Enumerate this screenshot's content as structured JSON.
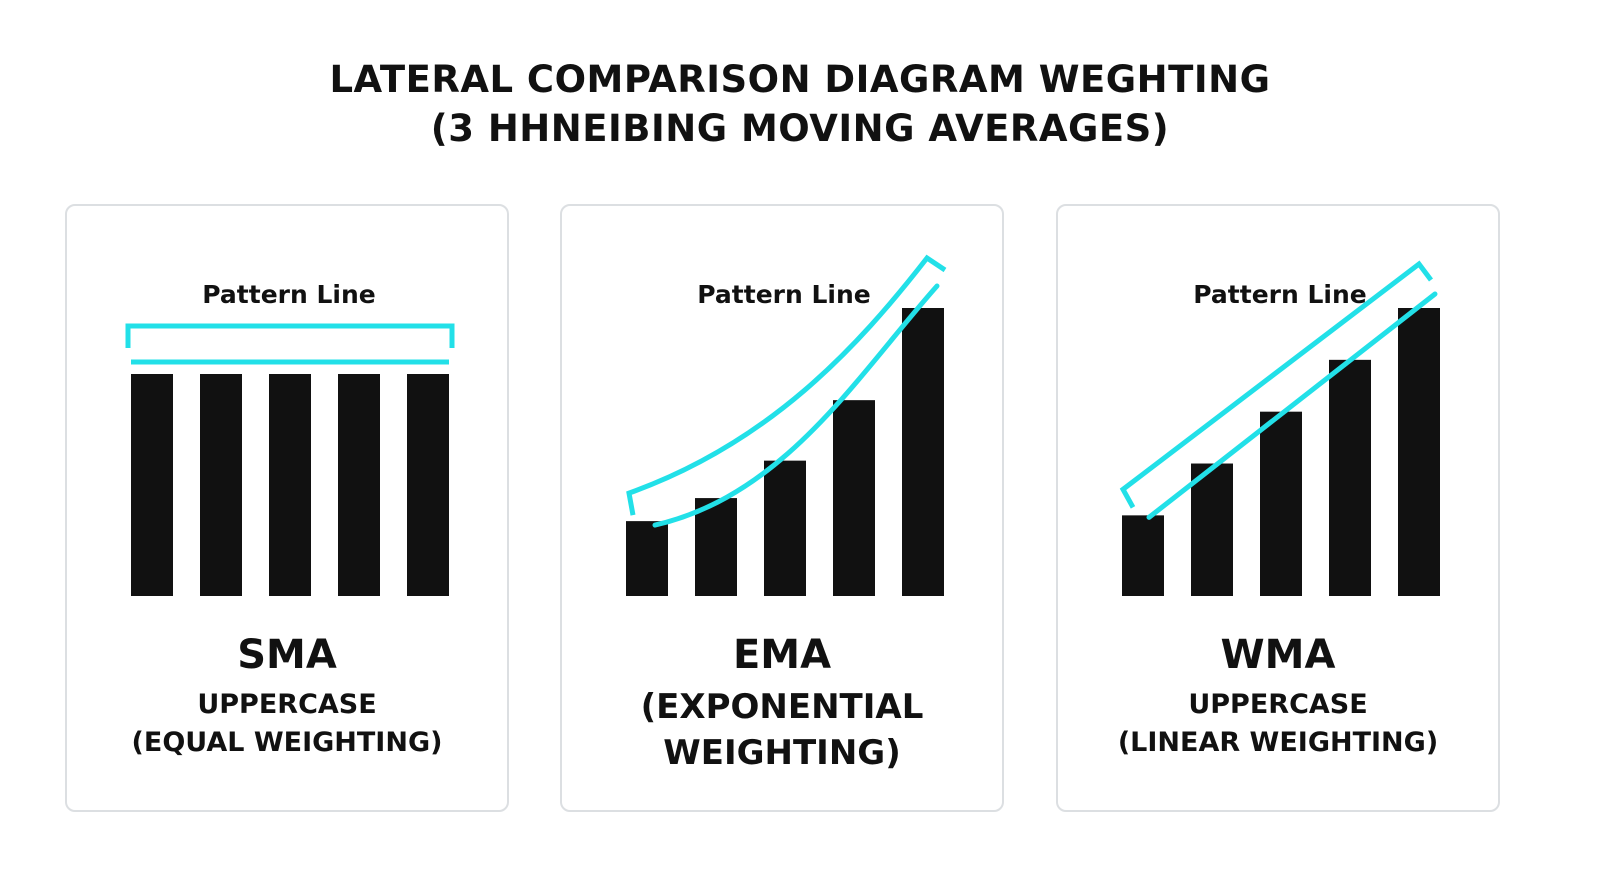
{
  "title": {
    "line1": "LATERAL COMPARISON DIAGRAM WEGHTING",
    "line2": "(3 HHNEIBING MOVING AVERAGES)"
  },
  "colors": {
    "bar": "#111111",
    "line": "#22e0e8",
    "border": "#dcdfe2",
    "background": "#ffffff"
  },
  "panels": [
    {
      "pattern_label": "Pattern Line",
      "abbr": "SMA",
      "desc_lines": [
        "UPPERCASE",
        "(EQUAL WEIGHTING)"
      ],
      "weights": [
        1,
        1,
        1,
        1,
        1
      ],
      "style": "equal"
    },
    {
      "pattern_label": "Pattern Line",
      "abbr": "EMA",
      "desc_lines": [
        "(EXPONENTIAL",
        "WEIGHTING)"
      ],
      "weights": [
        0.26,
        0.34,
        0.47,
        0.68,
        1
      ],
      "style": "exponential"
    },
    {
      "pattern_label": "Pattern Line",
      "abbr": "WMA",
      "desc_lines": [
        "UPPERCASE",
        "(LINEAR WEIGHTING)"
      ],
      "weights": [
        0.28,
        0.46,
        0.64,
        0.82,
        1
      ],
      "style": "linear"
    }
  ]
}
